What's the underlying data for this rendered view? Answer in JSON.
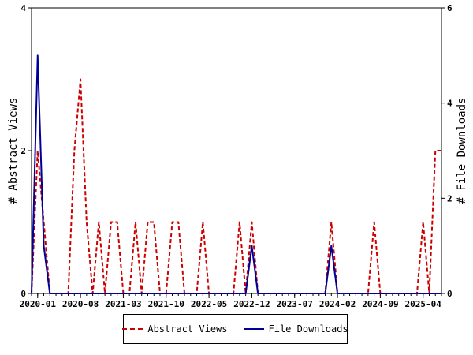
{
  "chart_data": {
    "type": "line",
    "x": [
      "2019-12",
      "2020-01",
      "2020-02",
      "2020-03",
      "2020-04",
      "2020-05",
      "2020-06",
      "2020-07",
      "2020-08",
      "2020-09",
      "2020-10",
      "2020-11",
      "2020-12",
      "2021-01",
      "2021-02",
      "2021-03",
      "2021-04",
      "2021-05",
      "2021-06",
      "2021-07",
      "2021-08",
      "2021-09",
      "2021-10",
      "2021-11",
      "2021-12",
      "2022-01",
      "2022-02",
      "2022-03",
      "2022-04",
      "2022-05",
      "2022-06",
      "2022-07",
      "2022-08",
      "2022-09",
      "2022-10",
      "2022-11",
      "2022-12",
      "2023-01",
      "2023-02",
      "2023-03",
      "2023-04",
      "2023-05",
      "2023-06",
      "2023-07",
      "2023-08",
      "2023-09",
      "2023-10",
      "2023-11",
      "2023-12",
      "2024-01",
      "2024-02",
      "2024-03",
      "2024-04",
      "2024-05",
      "2024-06",
      "2024-07",
      "2024-08",
      "2024-09",
      "2024-10",
      "2024-11",
      "2024-12",
      "2025-01",
      "2025-02",
      "2025-03",
      "2025-04",
      "2025-05",
      "2025-06",
      "2025-07"
    ],
    "series": [
      {
        "name": "Abstract Views",
        "axis": "left",
        "color": "#cc0000",
        "style": "dashed",
        "values": [
          0,
          2,
          1,
          0,
          0,
          0,
          0,
          2,
          3,
          1,
          0,
          1,
          0,
          1,
          1,
          0,
          0,
          1,
          0,
          1,
          1,
          0,
          0,
          1,
          1,
          0,
          0,
          0,
          1,
          0,
          0,
          0,
          0,
          0,
          1,
          0,
          1,
          0,
          0,
          0,
          0,
          0,
          0,
          0,
          0,
          0,
          0,
          0,
          0,
          1,
          0,
          0,
          0,
          0,
          0,
          0,
          1,
          0,
          0,
          0,
          0,
          0,
          0,
          0,
          1,
          0,
          2,
          2
        ]
      },
      {
        "name": "File Downloads",
        "axis": "right",
        "color": "#000099",
        "style": "solid",
        "values": [
          0,
          5,
          1,
          0,
          0,
          0,
          0,
          0,
          0,
          0,
          0,
          0,
          0,
          0,
          0,
          0,
          0,
          0,
          0,
          0,
          0,
          0,
          0,
          0,
          0,
          0,
          0,
          0,
          0,
          0,
          0,
          0,
          0,
          0,
          0,
          0,
          1,
          0,
          0,
          0,
          0,
          0,
          0,
          0,
          0,
          0,
          0,
          0,
          0,
          1,
          0,
          0,
          0,
          0,
          0,
          0,
          0,
          0,
          0,
          0,
          0,
          0,
          0,
          0,
          0,
          0,
          0,
          0
        ]
      }
    ],
    "xticks": [
      "2020-01",
      "2020-08",
      "2021-03",
      "2021-10",
      "2022-05",
      "2022-12",
      "2023-07",
      "2024-02",
      "2024-09",
      "2025-04"
    ],
    "ylabel": "# Abstract Views",
    "y2label": "# File Downloads",
    "ylim": [
      0,
      4
    ],
    "y2lim": [
      0,
      6
    ],
    "yticks": [
      0,
      2,
      4
    ],
    "y2ticks": [
      0,
      2,
      4,
      6
    ],
    "legend_position": "bottom-center",
    "grid": false
  },
  "legend": {
    "views_label": "Abstract Views",
    "downloads_label": "File Downloads"
  }
}
